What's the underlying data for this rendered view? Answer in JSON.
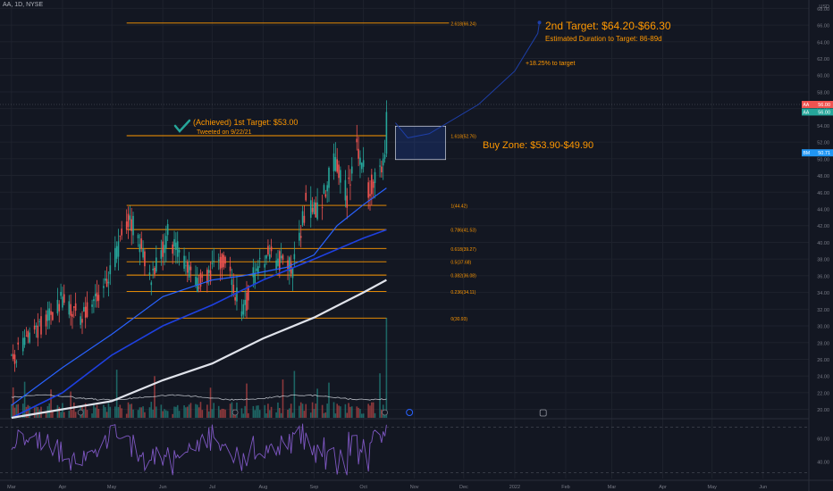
{
  "header": {
    "title": "AA, 1D, NYSE"
  },
  "price_axis": {
    "currency": "USD",
    "ticks": [
      "68.00",
      "66.00",
      "64.00",
      "62.00",
      "60.00",
      "58.00",
      "56.00",
      "54.00",
      "52.00",
      "50.00",
      "48.00",
      "46.00",
      "44.00",
      "42.00",
      "40.00",
      "38.00",
      "36.00",
      "34.00",
      "32.00",
      "30.00",
      "28.00",
      "26.00",
      "24.00",
      "22.00",
      "20.00"
    ],
    "badges": [
      {
        "label": "AA",
        "value": "56.00",
        "price": 56.5,
        "color": "#ef5350"
      },
      {
        "label": "AA",
        "value": "56.00",
        "price": 55.6,
        "color": "#26a69a"
      },
      {
        "label": "BM",
        "value": "50.71",
        "price": 50.71,
        "color": "#2196f3"
      }
    ]
  },
  "rsi_axis": {
    "ticks": [
      "60.00",
      "40.00"
    ]
  },
  "time_axis": {
    "labels": [
      "Mar",
      "Apr",
      "May",
      "Jun",
      "Jul",
      "Aug",
      "Sep",
      "Oct",
      "Nov",
      "Dec",
      "2022",
      "Feb",
      "Mar",
      "Apr",
      "May",
      "Jun"
    ]
  },
  "fib_levels": [
    {
      "ratio": 2.618,
      "label": "2.618(66.24)",
      "price": 66.24
    },
    {
      "ratio": 1.618,
      "label": "1.618(52.76)",
      "price": 52.76
    },
    {
      "ratio": 1,
      "label": "1(44.42)",
      "price": 44.42
    },
    {
      "ratio": 0.786,
      "label": "0.786(41.53)",
      "price": 41.53
    },
    {
      "ratio": 0.618,
      "label": "0.618(39.27)",
      "price": 39.27
    },
    {
      "ratio": 0.5,
      "label": "0.5(37.68)",
      "price": 37.68
    },
    {
      "ratio": 0.382,
      "label": "0.382(36.08)",
      "price": 36.08
    },
    {
      "ratio": 0.236,
      "label": "0.236(34.11)",
      "price": 34.11
    },
    {
      "ratio": 0,
      "label": "0(30.93)",
      "price": 30.93
    }
  ],
  "annotations": {
    "first_target": "(Achieved) 1st Target: $53.00",
    "tweet": "Tweeted on 9/22/21",
    "second_target": "2nd Target: $64.20-$66.30",
    "duration": "Estimated Duration to Target: 86-89d",
    "pct": "+18.25% to target",
    "buy_zone": "Buy Zone: $53.90-$49.90"
  },
  "colors": {
    "background": "#131722",
    "bull": "#26a69a",
    "bear": "#ef5350",
    "fib": "#ff9800",
    "ma_fast": "#2962ff",
    "ma_200": "#e0e3eb",
    "rsi": "#7e57c2",
    "annotation_text": "#ff9800",
    "check": "#26a69a"
  },
  "chart_data": {
    "type": "candlestick",
    "title": "AA, 1D, NYSE",
    "ylim": [
      19,
      69
    ],
    "rsi_ylim": [
      25,
      75
    ],
    "anchors": [
      {
        "date": "2021-03-01",
        "price": 26.0
      },
      {
        "date": "2021-03-19",
        "price": 30.0
      },
      {
        "date": "2021-03-31",
        "price": 33.0
      },
      {
        "date": "2021-04-12",
        "price": 31.0
      },
      {
        "date": "2021-04-29",
        "price": 36.0
      },
      {
        "date": "2021-05-12",
        "price": 43.0
      },
      {
        "date": "2021-05-25",
        "price": 36.0
      },
      {
        "date": "2021-06-04",
        "price": 41.0
      },
      {
        "date": "2021-06-21",
        "price": 35.0
      },
      {
        "date": "2021-07-08",
        "price": 38.0
      },
      {
        "date": "2021-07-20",
        "price": 31.5
      },
      {
        "date": "2021-07-26",
        "price": 36.0
      },
      {
        "date": "2021-08-05",
        "price": 38.5
      },
      {
        "date": "2021-08-19",
        "price": 37.0
      },
      {
        "date": "2021-08-27",
        "price": 44.5
      },
      {
        "date": "2021-09-03",
        "price": 43.5
      },
      {
        "date": "2021-09-14",
        "price": 50.0
      },
      {
        "date": "2021-09-21",
        "price": 45.5
      },
      {
        "date": "2021-09-27",
        "price": 51.5
      },
      {
        "date": "2021-10-04",
        "price": 46.5
      },
      {
        "date": "2021-10-13",
        "price": 49.5
      },
      {
        "date": "2021-10-14",
        "price": 50.5
      },
      {
        "date": "2021-10-15",
        "price": 55.6
      }
    ],
    "moving_averages": [
      {
        "label": "fast",
        "points": [
          [
            "2021-03-01",
            20.5
          ],
          [
            "2021-04-01",
            25.0
          ],
          [
            "2021-05-01",
            29.0
          ],
          [
            "2021-06-01",
            33.5
          ],
          [
            "2021-07-01",
            35.5
          ],
          [
            "2021-07-20",
            36.0
          ],
          [
            "2021-08-15",
            37.0
          ],
          [
            "2021-09-01",
            38.5
          ],
          [
            "2021-09-15",
            42.0
          ],
          [
            "2021-10-01",
            44.5
          ],
          [
            "2021-10-15",
            46.5
          ]
        ]
      },
      {
        "label": "mid",
        "points": [
          [
            "2021-03-01",
            19.0
          ],
          [
            "2021-04-01",
            22.0
          ],
          [
            "2021-05-01",
            26.5
          ],
          [
            "2021-06-01",
            30.0
          ],
          [
            "2021-07-01",
            32.5
          ],
          [
            "2021-08-01",
            35.5
          ],
          [
            "2021-09-01",
            38.0
          ],
          [
            "2021-10-01",
            40.5
          ],
          [
            "2021-10-15",
            41.5
          ]
        ]
      },
      {
        "label": "200",
        "points": [
          [
            "2021-03-01",
            19.0
          ],
          [
            "2021-05-01",
            21.0
          ],
          [
            "2021-06-01",
            23.5
          ],
          [
            "2021-07-01",
            25.5
          ],
          [
            "2021-08-01",
            28.5
          ],
          [
            "2021-09-01",
            31.0
          ],
          [
            "2021-10-01",
            34.0
          ],
          [
            "2021-10-15",
            35.5
          ]
        ]
      }
    ],
    "projection": [
      [
        "2021-10-15",
        54.3
      ],
      [
        "2021-10-28",
        52.5
      ],
      [
        "2021-11-10",
        53.0
      ],
      [
        "2021-12-10",
        56.5
      ],
      [
        "2022-01-01",
        60.5
      ],
      [
        "2022-01-15",
        65.0
      ],
      [
        "2022-01-16",
        66.3
      ]
    ],
    "buy_zone": {
      "start": "2021-10-15",
      "end": "2021-11-20",
      "low": 49.9,
      "high": 53.9
    }
  }
}
